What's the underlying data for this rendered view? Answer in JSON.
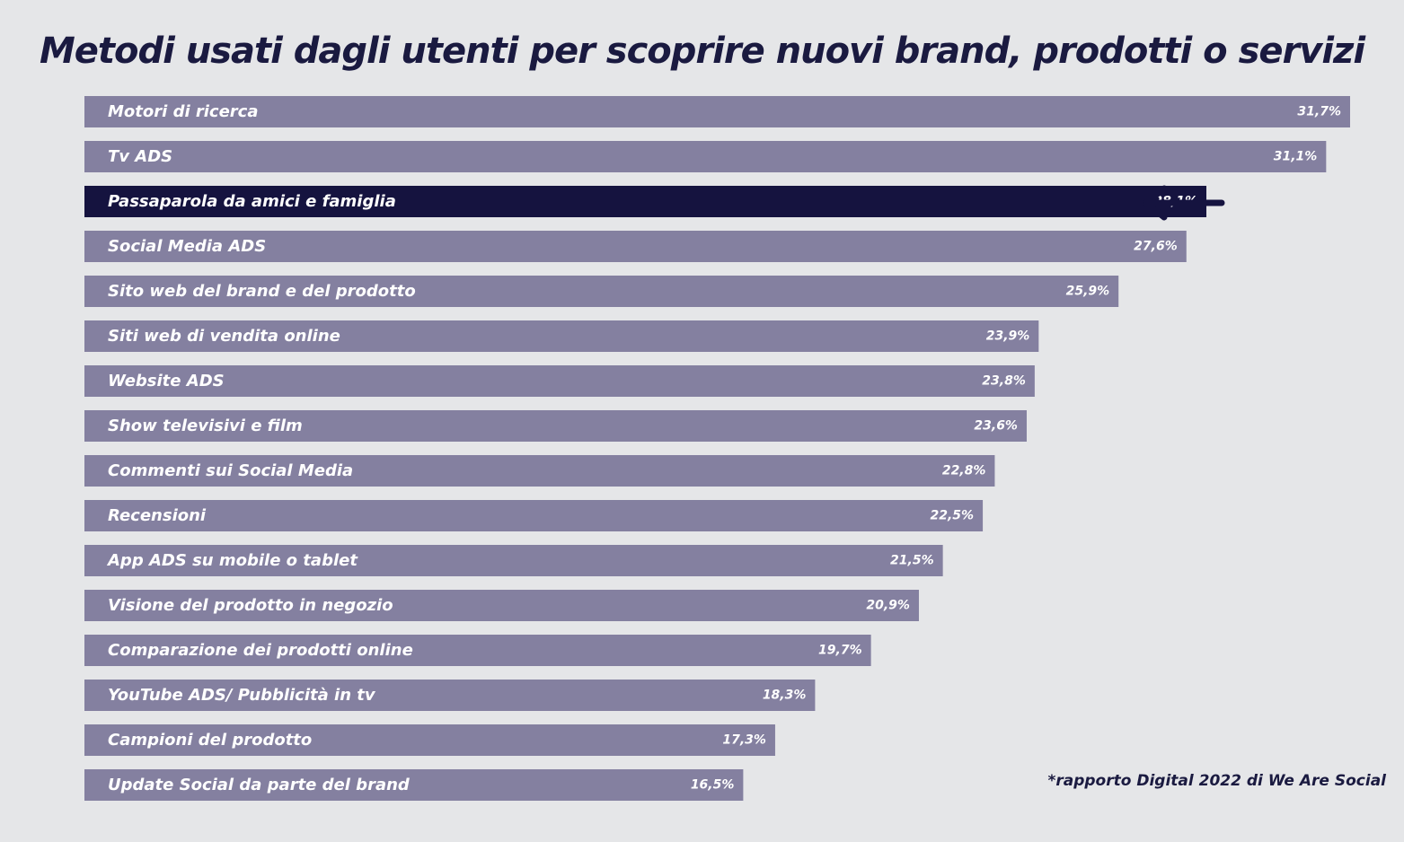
{
  "title": "Metodi usati dagli utenti per scoprire nuovi brand, prodotti o servizi",
  "source_note": "*rapporto Digital 2022 di We Are Social",
  "colors": {
    "background": "#e5e6e8",
    "bar": "#8480a0",
    "highlight": "#15133f",
    "text_on_bar": "#ffffff",
    "arrow": "#15133f"
  },
  "chart_data": {
    "type": "bar",
    "orientation": "horizontal",
    "categories": [
      "Motori di ricerca",
      "Tv ADS",
      "Passaparola da amici e famiglia",
      "Social Media ADS",
      "Sito web del brand e del prodotto",
      "Siti web di vendita online",
      "Website ADS",
      "Show televisivi e film",
      "Commenti sui Social Media",
      "Recensioni",
      "App ADS su mobile o tablet",
      "Visione del prodotto in negozio",
      "Comparazione dei prodotti online",
      "YouTube ADS/ Pubblicità in tv",
      "Campioni del prodotto",
      "Update Social da parte del brand"
    ],
    "values": [
      31.7,
      31.1,
      28.1,
      27.6,
      25.9,
      23.9,
      23.8,
      23.6,
      22.8,
      22.5,
      21.5,
      20.9,
      19.7,
      18.3,
      17.3,
      16.5
    ],
    "value_labels": [
      "31,7%",
      "31,1%",
      "28,1%",
      "27,6%",
      "25,9%",
      "23,9%",
      "23,8%",
      "23,6%",
      "22,8%",
      "22,5%",
      "21,5%",
      "20,9%",
      "19,7%",
      "18,3%",
      "17,3%",
      "16,5%"
    ],
    "highlighted_category": "Passaparola da amici e famiglia",
    "highlight_marker": "arrow-left-icon",
    "xlim": [
      0,
      31.7
    ],
    "grid": false,
    "legend": "none"
  }
}
